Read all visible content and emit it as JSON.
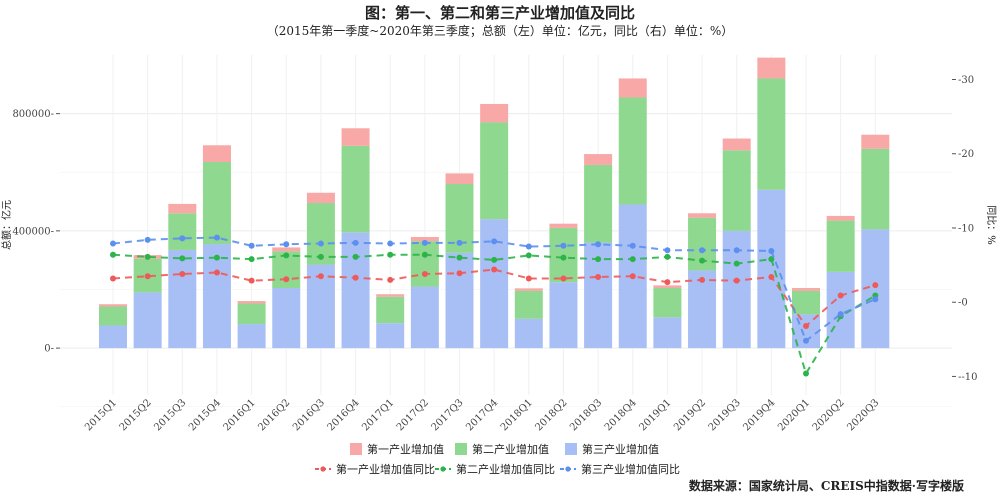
{
  "title": "图：第一、第二和第三产业增加值及同比",
  "subtitle": "（2015年第一季度~2020年第三季度；总额（左）单位：亿元，同比（右）单位：%）",
  "source": "数据来源：国家统计局、CREIS中指数据·写字楼版",
  "chart_data": {
    "type": "bar",
    "stacked": true,
    "categories": [
      "2015Q1",
      "2015Q2",
      "2015Q3",
      "2015Q4",
      "2016Q1",
      "2016Q2",
      "2016Q3",
      "2016Q4",
      "2017Q1",
      "2017Q2",
      "2017Q3",
      "2017Q4",
      "2018Q1",
      "2018Q2",
      "2018Q3",
      "2018Q4",
      "2019Q1",
      "2019Q2",
      "2019Q3",
      "2019Q4",
      "2020Q1",
      "2020Q2",
      "2020Q3"
    ],
    "bar_series": [
      {
        "name": "第一产业增加值",
        "color": "#F8A8A6",
        "values": [
          7700,
          12300,
          32000,
          57000,
          8500,
          13500,
          35000,
          60000,
          8800,
          14000,
          36000,
          63000,
          8900,
          14500,
          37000,
          65000,
          9000,
          15000,
          40000,
          71000,
          10000,
          16000,
          48000
        ]
      },
      {
        "name": "第二产业增加值",
        "color": "#8FD88F",
        "values": [
          65000,
          115000,
          125000,
          280000,
          70000,
          125000,
          210000,
          295000,
          90000,
          155000,
          235000,
          330000,
          95000,
          185000,
          265000,
          365000,
          100000,
          180000,
          275000,
          380000,
          80000,
          175000,
          275000
        ]
      },
      {
        "name": "第三产业增加值",
        "color": "#A8BFF5",
        "values": [
          77000,
          190000,
          335000,
          355000,
          82000,
          205000,
          285000,
          395000,
          85000,
          210000,
          325000,
          440000,
          100000,
          225000,
          360000,
          490000,
          105000,
          265000,
          400000,
          540000,
          115000,
          260000,
          405000
        ]
      }
    ],
    "line_series": [
      {
        "name": "第一产业增加值同比",
        "color": "#EE5A5A",
        "values": [
          3.2,
          3.5,
          3.8,
          4.0,
          2.9,
          3.1,
          3.5,
          3.3,
          3.0,
          3.8,
          3.9,
          4.4,
          3.2,
          3.2,
          3.4,
          3.5,
          2.7,
          3.0,
          2.9,
          3.4,
          -3.2,
          0.9,
          2.3
        ]
      },
      {
        "name": "第二产业增加值同比",
        "color": "#2BB44A",
        "values": [
          6.4,
          6.1,
          5.9,
          6.0,
          5.8,
          6.3,
          6.1,
          6.1,
          6.4,
          6.4,
          6.0,
          5.7,
          6.3,
          6.0,
          5.8,
          5.8,
          6.1,
          5.6,
          5.2,
          5.8,
          -9.6,
          -1.9,
          0.9
        ]
      },
      {
        "name": "第三产业增加值同比",
        "color": "#5B8FF0",
        "values": [
          7.9,
          8.4,
          8.6,
          8.7,
          7.6,
          7.8,
          7.9,
          8.0,
          7.9,
          8.0,
          8.0,
          8.2,
          7.5,
          7.6,
          7.8,
          7.6,
          7.0,
          7.0,
          7.0,
          6.9,
          -5.2,
          -1.6,
          0.4
        ]
      }
    ],
    "ylabel_left": "总额：亿元",
    "ylabel_right": "同比：%",
    "ylim_left": [
      -160000,
      1000000
    ],
    "ylim_right": [
      -12.5,
      33.3
    ],
    "yticks_left": [
      0,
      400000,
      800000
    ],
    "yticks_right": [
      -10,
      0,
      10,
      20,
      30
    ],
    "grid": true,
    "legend_position": "bottom"
  }
}
